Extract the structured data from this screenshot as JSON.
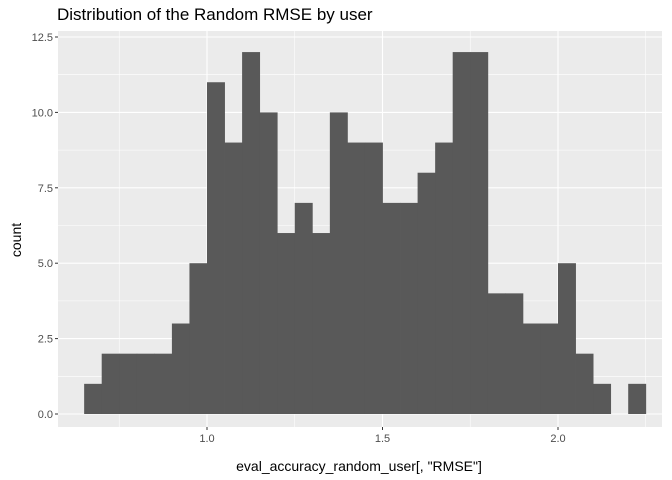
{
  "chart_data": {
    "type": "bar",
    "title": "Distribution of the Random RMSE by user",
    "xlabel": "eval_accuracy_random_user[, \"RMSE\"]",
    "ylabel": "count",
    "xlim": [
      0.625,
      2.25
    ],
    "ylim": [
      -0.6,
      12.6
    ],
    "x_ticks": [
      1.0,
      1.5,
      2.0
    ],
    "x_tick_labels": [
      "1.0",
      "1.5",
      "2.0"
    ],
    "y_ticks": [
      0,
      2.5,
      5,
      7.5,
      10,
      12.5
    ],
    "y_tick_labels": [
      "0.0",
      "2.5",
      "5.0",
      "7.5",
      "10.0",
      "12.5"
    ],
    "grid": true,
    "bin_width": 0.05,
    "bins": [
      {
        "x0": 0.65,
        "x1": 0.7,
        "count": 1
      },
      {
        "x0": 0.7,
        "x1": 0.75,
        "count": 2
      },
      {
        "x0": 0.75,
        "x1": 0.8,
        "count": 2
      },
      {
        "x0": 0.8,
        "x1": 0.85,
        "count": 2
      },
      {
        "x0": 0.85,
        "x1": 0.9,
        "count": 2
      },
      {
        "x0": 0.9,
        "x1": 0.95,
        "count": 3
      },
      {
        "x0": 0.95,
        "x1": 1.0,
        "count": 5
      },
      {
        "x0": 1.0,
        "x1": 1.05,
        "count": 11
      },
      {
        "x0": 1.05,
        "x1": 1.1,
        "count": 9
      },
      {
        "x0": 1.1,
        "x1": 1.15,
        "count": 12
      },
      {
        "x0": 1.15,
        "x1": 1.2,
        "count": 10
      },
      {
        "x0": 1.2,
        "x1": 1.25,
        "count": 6
      },
      {
        "x0": 1.25,
        "x1": 1.3,
        "count": 7
      },
      {
        "x0": 1.3,
        "x1": 1.35,
        "count": 6
      },
      {
        "x0": 1.35,
        "x1": 1.4,
        "count": 10
      },
      {
        "x0": 1.4,
        "x1": 1.45,
        "count": 9
      },
      {
        "x0": 1.45,
        "x1": 1.5,
        "count": 9
      },
      {
        "x0": 1.5,
        "x1": 1.55,
        "count": 7
      },
      {
        "x0": 1.55,
        "x1": 1.6,
        "count": 7
      },
      {
        "x0": 1.6,
        "x1": 1.65,
        "count": 8
      },
      {
        "x0": 1.65,
        "x1": 1.7,
        "count": 9
      },
      {
        "x0": 1.7,
        "x1": 1.75,
        "count": 12
      },
      {
        "x0": 1.75,
        "x1": 1.8,
        "count": 12
      },
      {
        "x0": 1.8,
        "x1": 1.85,
        "count": 4
      },
      {
        "x0": 1.85,
        "x1": 1.9,
        "count": 4
      },
      {
        "x0": 1.9,
        "x1": 1.95,
        "count": 3
      },
      {
        "x0": 1.95,
        "x1": 2.0,
        "count": 3
      },
      {
        "x0": 2.0,
        "x1": 2.05,
        "count": 5
      },
      {
        "x0": 2.05,
        "x1": 2.1,
        "count": 2
      },
      {
        "x0": 2.1,
        "x1": 2.15,
        "count": 1
      },
      {
        "x0": 2.15,
        "x1": 2.2,
        "count": 0
      },
      {
        "x0": 2.2,
        "x1": 2.25,
        "count": 1
      }
    ],
    "colors": {
      "panel_background": "#ebebeb",
      "grid_major": "#ffffff",
      "bar_fill": "#595959",
      "tick_text": "#4d4d4d",
      "tick_mark": "#333333"
    }
  }
}
